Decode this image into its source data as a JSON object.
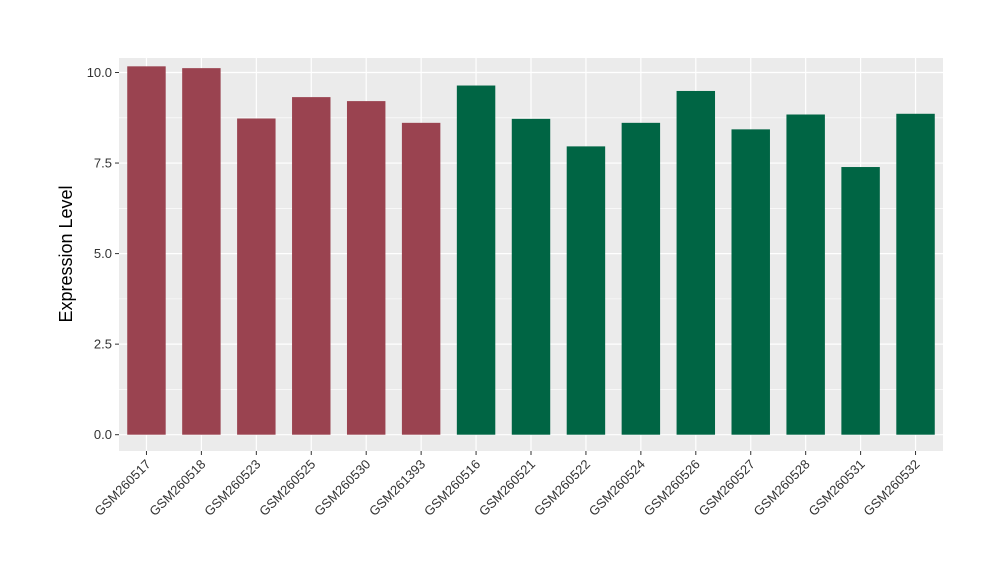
{
  "chart_data": {
    "type": "bar",
    "title": "",
    "xlabel": "",
    "ylabel": "Expression Level",
    "ylim": [
      -0.45,
      10.4
    ],
    "yticks": [
      "0.0",
      "2.5",
      "5.0",
      "7.5",
      "10.0"
    ],
    "ytick_values": [
      0,
      2.5,
      5,
      7.5,
      10
    ],
    "grid": true,
    "legend": "none",
    "categories": [
      "GSM260517",
      "GSM260518",
      "GSM260523",
      "GSM260525",
      "GSM260530",
      "GSM261393",
      "GSM260516",
      "GSM260521",
      "GSM260522",
      "GSM260524",
      "GSM260526",
      "GSM260527",
      "GSM260528",
      "GSM260531",
      "GSM260532"
    ],
    "values": [
      10.17,
      10.12,
      8.73,
      9.32,
      9.21,
      8.61,
      9.64,
      8.72,
      7.96,
      8.61,
      9.49,
      8.43,
      8.84,
      7.39,
      8.86
    ],
    "groups": [
      0,
      0,
      0,
      0,
      0,
      0,
      1,
      1,
      1,
      1,
      1,
      1,
      1,
      1,
      1
    ],
    "group_colors": [
      "#9a4350",
      "#006544"
    ],
    "panel_background": "#ebebeb",
    "grid_color": "#ffffff"
  }
}
